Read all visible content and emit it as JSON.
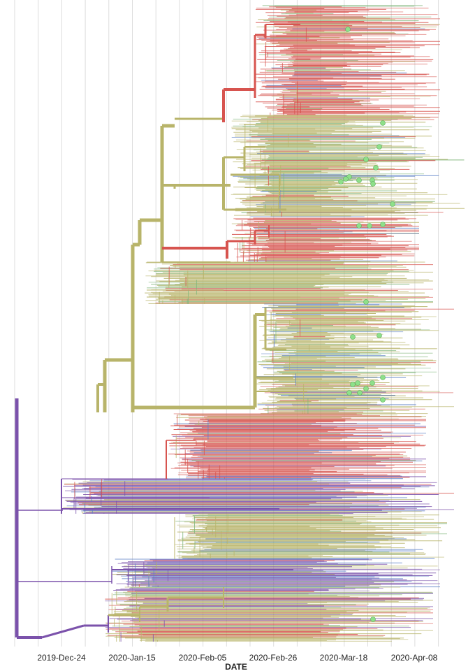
{
  "chart_data": {
    "type": "phylogenetic-tree",
    "x_axis": {
      "title": "DATE",
      "ticks": [
        "2019-Dec-24",
        "2020-Jan-15",
        "2020-Feb-05",
        "2020-Feb-26",
        "2020-Mar-18",
        "2020-Apr-08"
      ],
      "grid": true
    },
    "layout": "rectangular",
    "colors": {
      "purple": "#7b52ab",
      "olive": "#b8b46a",
      "red": "#d7544f",
      "blue": "#5b7fc6",
      "green": "#7fb57a",
      "tip_marker": "#8ee08a",
      "grid": "#dddddd"
    },
    "tip_markers": "green circles on selected tips"
  }
}
